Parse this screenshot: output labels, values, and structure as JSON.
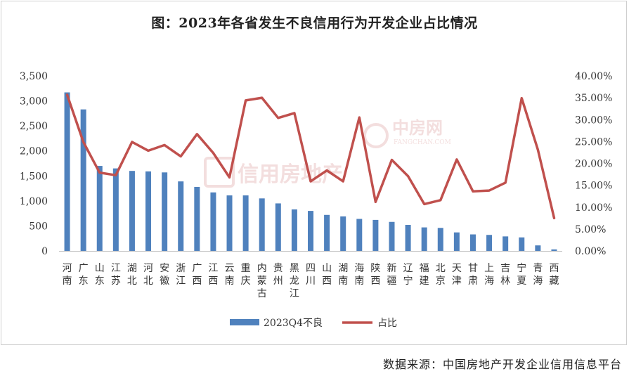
{
  "chart_data": {
    "type": "bar",
    "title": "图：2023年各省发生不良信用行为开发企业占比情况",
    "categories": [
      "河南",
      "广东",
      "山东",
      "江苏",
      "湖北",
      "河北",
      "安徽",
      "浙江",
      "广西",
      "江西",
      "云南",
      "重庆",
      "内蒙古",
      "贵州",
      "黑龙江",
      "四川",
      "山西",
      "湖南",
      "海南",
      "陕西",
      "新疆",
      "辽宁",
      "福建",
      "北京",
      "天津",
      "甘肃",
      "上海",
      "吉林",
      "宁夏",
      "青海",
      "西藏"
    ],
    "series": [
      {
        "name": "2023Q4不良",
        "type": "bar",
        "axis": "left",
        "color": "#4f81bd",
        "values": [
          3170,
          2830,
          1700,
          1650,
          1600,
          1590,
          1570,
          1390,
          1280,
          1170,
          1110,
          1110,
          1050,
          950,
          830,
          800,
          720,
          690,
          640,
          620,
          580,
          520,
          470,
          460,
          370,
          330,
          320,
          290,
          270,
          110,
          30
        ]
      },
      {
        "name": "占比",
        "type": "line",
        "axis": "right",
        "color": "#c0504d",
        "values": [
          35.7,
          24.9,
          17.9,
          17.3,
          24.9,
          22.9,
          24.2,
          21.6,
          26.7,
          22.4,
          16.8,
          34.4,
          35.0,
          30.4,
          31.5,
          15.9,
          18.4,
          15.9,
          30.5,
          11.2,
          20.8,
          17.1,
          10.7,
          11.6,
          20.9,
          13.6,
          13.8,
          15.6,
          34.9,
          23.1,
          7.5
        ]
      }
    ],
    "y_left": {
      "ylim": [
        0,
        3500
      ],
      "ticks": [
        "0",
        "500",
        "1,000",
        "1,500",
        "2,000",
        "2,500",
        "3,000",
        "3,500"
      ]
    },
    "y_right": {
      "ylim": [
        0,
        40
      ],
      "ticks": [
        "0.00%",
        "5.00%",
        "10.00%",
        "15.00%",
        "20.00%",
        "25.00%",
        "30.00%",
        "35.00%",
        "40.00%"
      ]
    },
    "grid": false,
    "legend_position": "bottom"
  },
  "source_note": "数据来源：中国房地产开发企业信用信息平台",
  "watermarks": [
    "信用房地产",
    "中房网",
    "FANGCHAN.COM"
  ]
}
